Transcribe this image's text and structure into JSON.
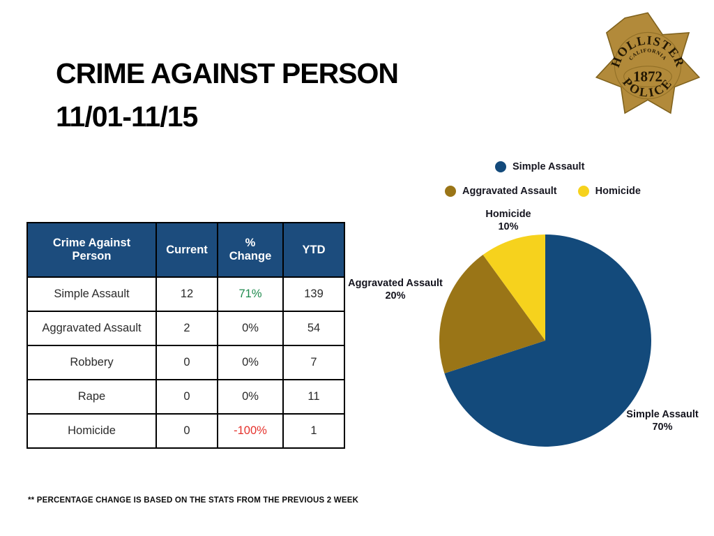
{
  "slide": {
    "title_line1": "CRIME AGAINST PERSON",
    "title_line2": "11/01-11/15",
    "footnote": "** PERCENTAGE CHANGE IS BASED ON THE STATS FROM THE PREVIOUS 2 WEEK",
    "background": "#ffffff"
  },
  "badge": {
    "arc_top": "HOLLISTER",
    "arc_state": "CALIFORNIA",
    "year": "1872",
    "arc_bottom": "POLICE",
    "gold": "#B28A3A",
    "gold_dark": "#7F611C"
  },
  "table": {
    "header_bg": "#1C4C7D",
    "positive_color": "#1E8A4D",
    "negative_color": "#E5312B",
    "headers": [
      "Crime Against\nPerson",
      "Current",
      "%\nChange",
      "YTD"
    ],
    "rows": [
      {
        "cells": [
          "Simple Assault",
          "12",
          "71%",
          "139"
        ],
        "change_style": "positive"
      },
      {
        "cells": [
          "Aggravated Assault",
          "2",
          "0%",
          "54"
        ],
        "change_style": "neutral"
      },
      {
        "cells": [
          "Robbery",
          "0",
          "0%",
          "7"
        ],
        "change_style": "neutral"
      },
      {
        "cells": [
          "Rape",
          "0",
          "0%",
          "11"
        ],
        "change_style": "neutral"
      },
      {
        "cells": [
          "Homicide",
          "0",
          "-100%",
          "1"
        ],
        "change_style": "negative"
      }
    ]
  },
  "chart_data": {
    "type": "pie",
    "title": "",
    "categories": [
      "Simple Assault",
      "Aggravated Assault",
      "Homicide"
    ],
    "values": [
      70,
      20,
      10
    ],
    "unit": "%",
    "colors": [
      "#134A7B",
      "#9A7517",
      "#F6D21D"
    ],
    "start_angle_deg": -90,
    "direction": "clockwise",
    "legend_position": "top",
    "labels": [
      {
        "name": "Simple Assault",
        "pct": "70%"
      },
      {
        "name": "Aggravated Assault",
        "pct": "20%"
      },
      {
        "name": "Homicide",
        "pct": "10%"
      }
    ]
  }
}
